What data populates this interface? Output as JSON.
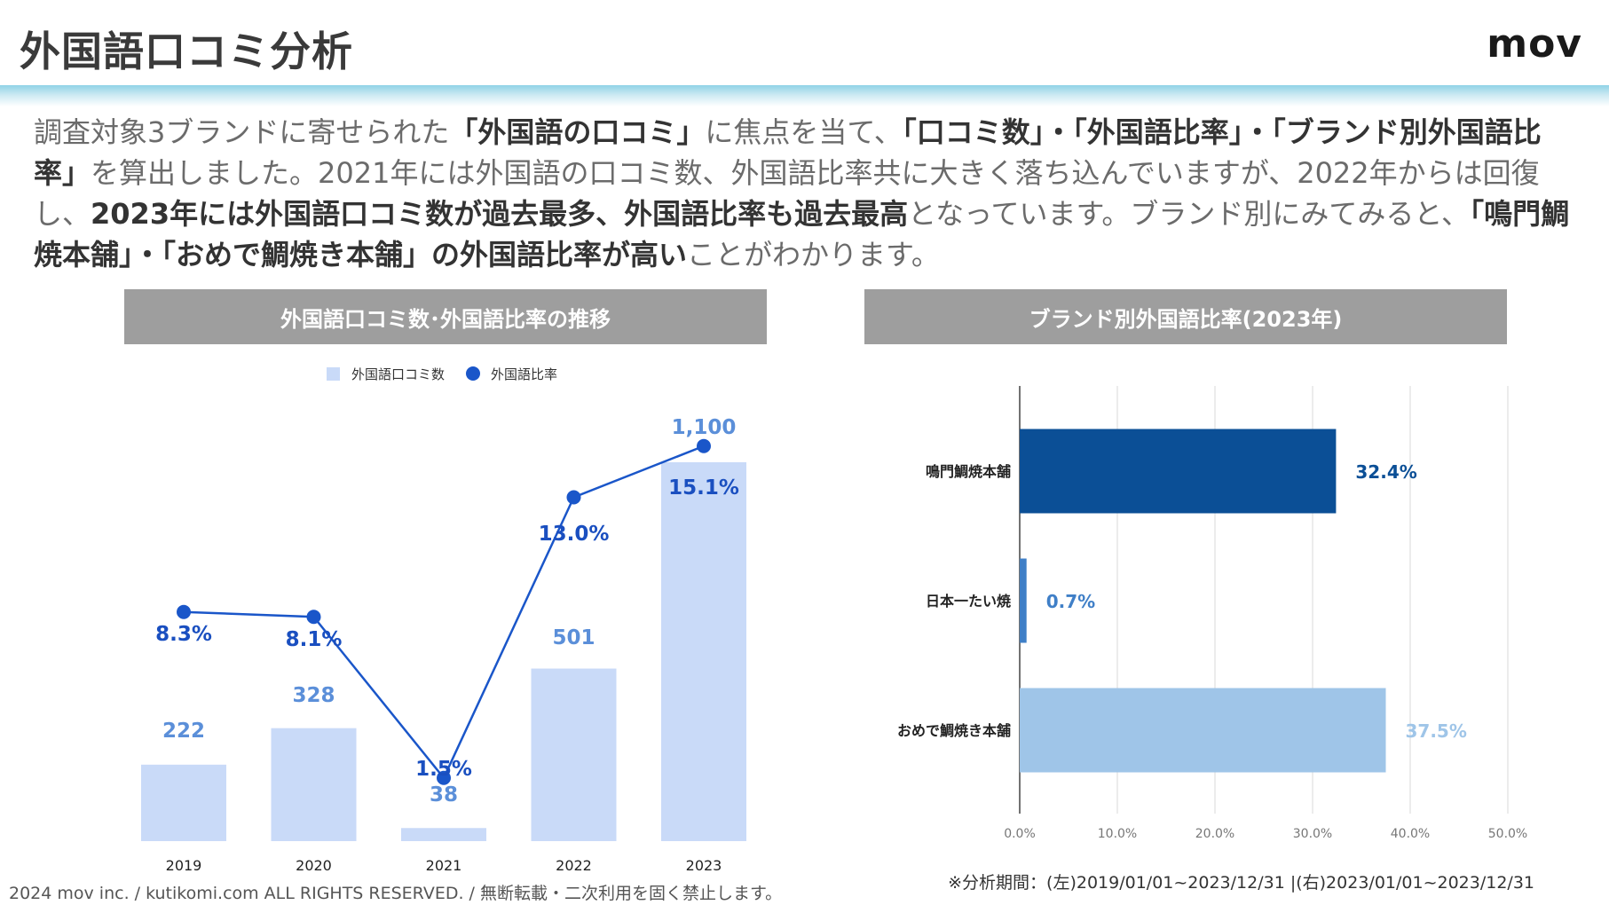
{
  "header": {
    "title": "外国語口コミ分析",
    "logo": "mov"
  },
  "intro": {
    "p1": "調査対象3ブランドに寄せられた",
    "b1": "「外国語の口コミ」",
    "p2": "に焦点を当て、",
    "b2": "「口コミ数」・「外国語比率」・「ブランド別外国語比率」",
    "p3": "を算出しました。2021年には外国語の口コミ数、外国語比率共に大きく落ち込んでいますが、2022年からは回復し、",
    "b3": "2023年には外国語口コミ数が過去最多、外国語比率も過去最高",
    "p4": "となっています。ブランド別にみてみると、",
    "b4": "「鳴門鯛焼本舗」・「おめで鯛焼き本舗」の外国語比率が高い",
    "p5": "ことがわかります。"
  },
  "footer": {
    "copyright": "2024 mov inc. / kutikomi.com ALL RIGHTS RESERVED. / 無断転載・二次利用を固く禁止します。",
    "note": "※分析期間：(左)2019/01/01~2023/12/31 |(右)2023/01/01~2023/12/31"
  },
  "colors": {
    "bar_light": "#c9daf8",
    "bar_label": "#5b8fd9",
    "line": "#1a56c9",
    "line_label": "#1a4fc0",
    "dark_blue": "#0b4f96",
    "mid_blue": "#3f7fc7",
    "light_blue": "#9fc5e8",
    "panel_head": "#9e9e9e"
  },
  "chart_data": [
    {
      "type": "bar+line",
      "title": "外国語口コミ数･外国語比率の推移",
      "categories": [
        "2019",
        "2020",
        "2021",
        "2022",
        "2023"
      ],
      "series": [
        {
          "name": "外国語口コミ数",
          "kind": "bar",
          "values": [
            222,
            328,
            38,
            501,
            1100
          ],
          "labels": [
            "222",
            "328",
            "38",
            "501",
            "1,100"
          ]
        },
        {
          "name": "外国語比率",
          "kind": "line",
          "values": [
            8.3,
            8.1,
            1.5,
            13.0,
            15.1
          ],
          "labels": [
            "8.3%",
            "8.1%",
            "1.5%",
            "13.0%",
            "15.1%"
          ]
        }
      ],
      "legend": "top",
      "bar_ylim": [
        0,
        1100
      ],
      "line_ylim": [
        0,
        20
      ]
    },
    {
      "type": "bar",
      "orientation": "horizontal",
      "title": "ブランド別外国語比率(2023年)",
      "categories": [
        "鳴門鯛焼本舗",
        "日本一たい焼",
        "おめで鯛焼き本舗"
      ],
      "values": [
        32.4,
        0.7,
        37.5
      ],
      "labels": [
        "32.4%",
        "0.7%",
        "37.5%"
      ],
      "xlim": [
        0,
        50
      ],
      "ticks": [
        "0.0%",
        "10.0%",
        "20.0%",
        "30.0%",
        "40.0%",
        "50.0%"
      ],
      "grid": true
    }
  ]
}
